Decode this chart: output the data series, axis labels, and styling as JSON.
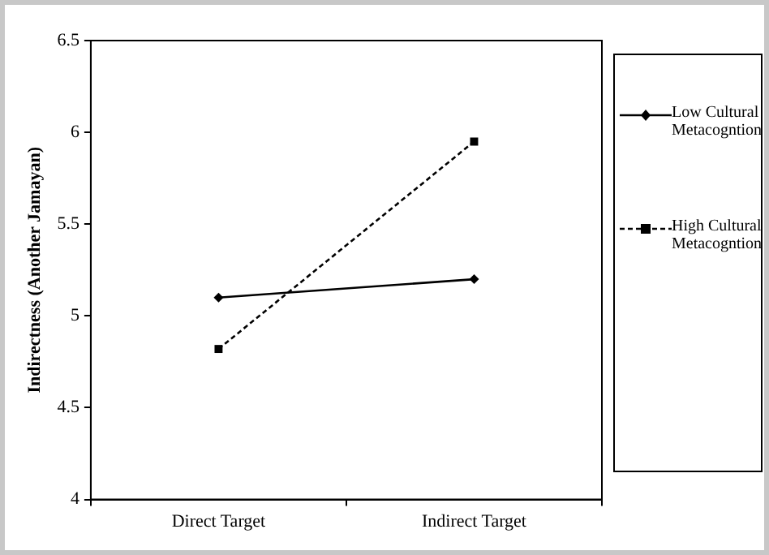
{
  "chart_data": {
    "type": "line",
    "ylabel": "Indirectness (Another Jamayan)",
    "categories": [
      "Direct Target",
      "Indirect Target"
    ],
    "series": [
      {
        "name": "Low Cultural Metacogntion",
        "color": "#000000",
        "values": [
          5.1,
          5.2
        ],
        "marker": "diamond",
        "line_style": "solid"
      },
      {
        "name": "High Cultural Metacogntion",
        "color": "#000000",
        "values": [
          4.82,
          5.95
        ],
        "marker": "square",
        "line_style": "dashed"
      }
    ],
    "ylim": [
      4,
      6.5
    ],
    "yticks": [
      4,
      4.5,
      5,
      5.5,
      6,
      6.5
    ],
    "grid": false,
    "legend": "right"
  }
}
